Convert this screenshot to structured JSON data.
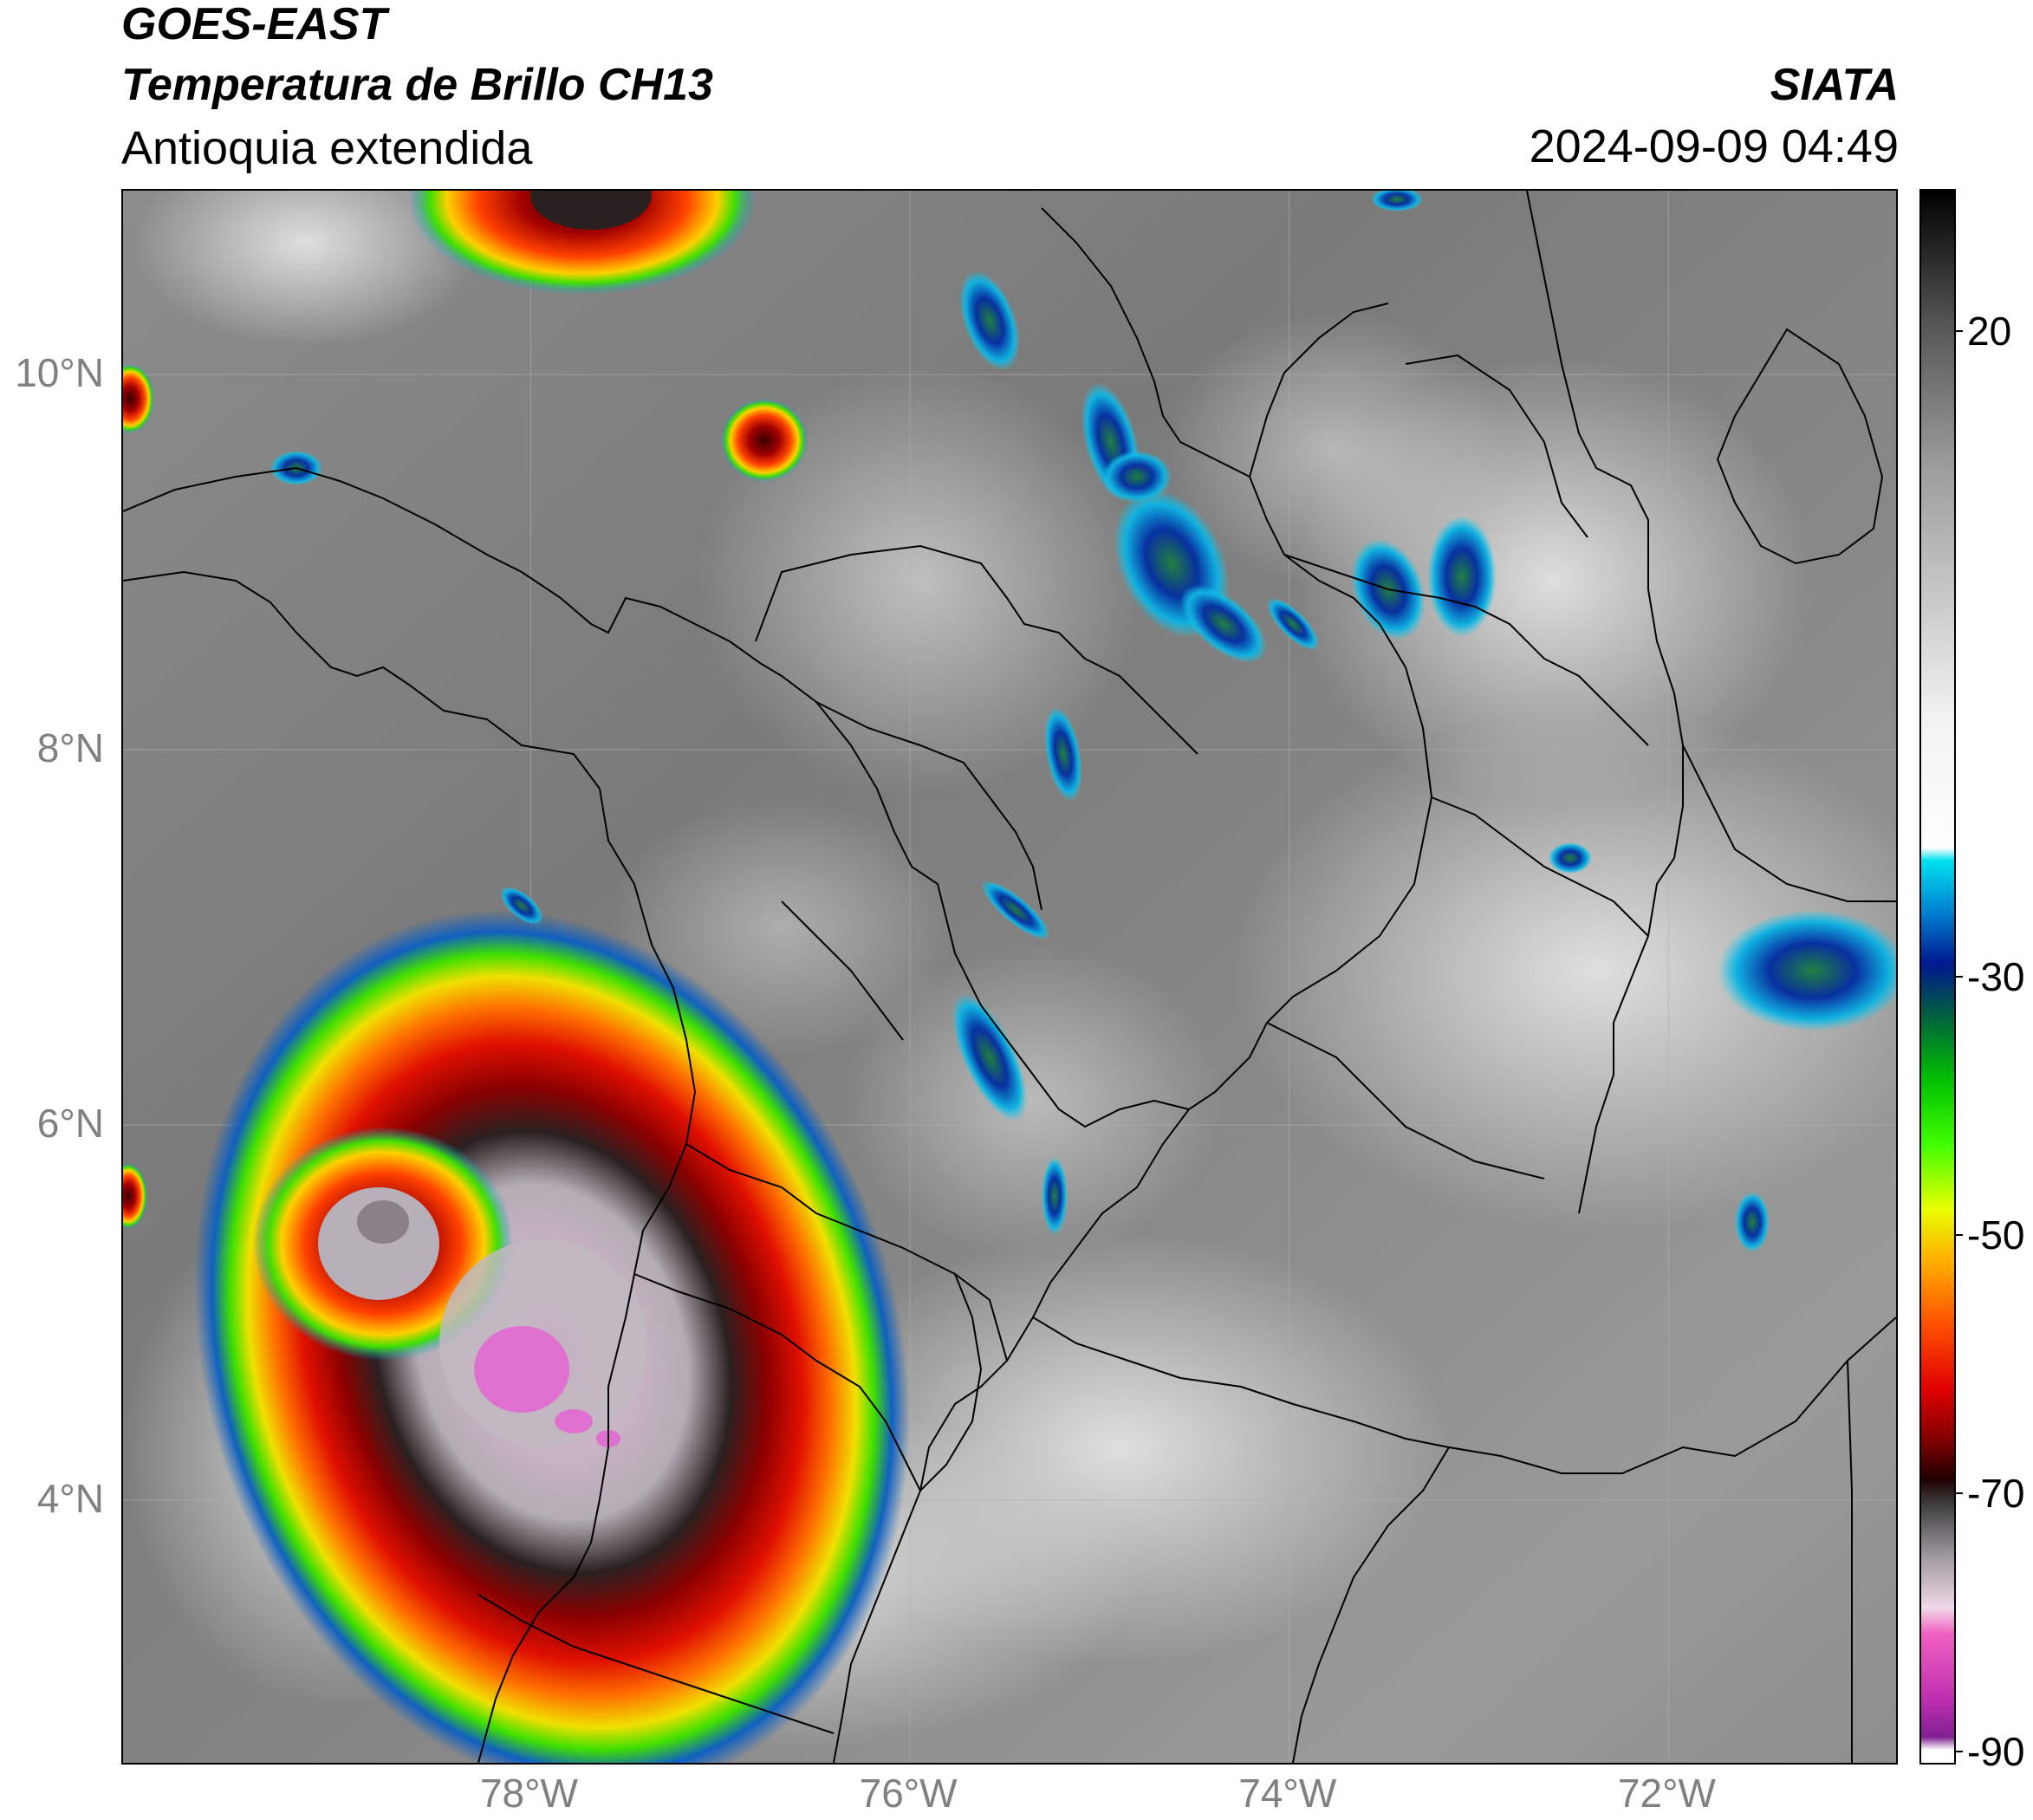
{
  "header": {
    "satellite": "GOES-EAST",
    "product": "Temperatura de Brillo CH13",
    "region": "Antioquia extendida",
    "agency": "SIATA",
    "datetime": "2024-09-09 04:49"
  },
  "map": {
    "type": "satellite-infrared-brightness-temperature",
    "lon_range": [
      -80.15,
      -70.8
    ],
    "lat_range": [
      2.6,
      10.98
    ],
    "lat_ticks": [
      {
        "value": 10,
        "label": "10°N"
      },
      {
        "value": 8,
        "label": "8°N"
      },
      {
        "value": 6,
        "label": "6°N"
      },
      {
        "value": 4,
        "label": "4°N"
      }
    ],
    "lon_ticks": [
      {
        "value": -78,
        "label": "78°W"
      },
      {
        "value": -76,
        "label": "76°W"
      },
      {
        "value": -74,
        "label": "74°W"
      },
      {
        "value": -72,
        "label": "72°W"
      }
    ],
    "gridlines": true,
    "features": [
      "coastlines",
      "country-borders",
      "department-borders"
    ],
    "convective_cells": [
      {
        "name": "large-storm-pacific",
        "lon": -78.0,
        "lat": 4.85,
        "min_temp_c": -85
      },
      {
        "name": "secondary-core",
        "lon": -78.55,
        "lat": 5.55,
        "min_temp_c": -72
      },
      {
        "name": "caribbean-north-cell",
        "lon": -77.7,
        "lat": 10.9,
        "min_temp_c": -70
      },
      {
        "name": "caribbean-small-cell",
        "lon": -76.85,
        "lat": 9.75,
        "min_temp_c": -60
      },
      {
        "name": "catatumbo-cell",
        "lon": -71.3,
        "lat": 6.8,
        "min_temp_c": -35
      },
      {
        "name": "magdalena-cells",
        "lon": -74.6,
        "lat": 9.2,
        "min_temp_c": -35
      }
    ]
  },
  "colorbar": {
    "label_values": [
      {
        "value": 20,
        "label": "20"
      },
      {
        "value": -30,
        "label": "-30"
      },
      {
        "value": -50,
        "label": "-50"
      },
      {
        "value": -70,
        "label": "-70"
      },
      {
        "value": -90,
        "label": "-90"
      }
    ],
    "range": [
      -91,
      31
    ],
    "stops": [
      {
        "value": 31,
        "color": "#000000"
      },
      {
        "value": 20,
        "color": "#5a5a5a"
      },
      {
        "value": 10,
        "color": "#9a9a9a"
      },
      {
        "value": -10,
        "color": "#f2f2f2"
      },
      {
        "value": -20,
        "color": "#ffffff"
      },
      {
        "value": -21,
        "color": "#00e0f0"
      },
      {
        "value": -25,
        "color": "#0080d0"
      },
      {
        "value": -29,
        "color": "#001890"
      },
      {
        "value": -33,
        "color": "#006040"
      },
      {
        "value": -38,
        "color": "#00c000"
      },
      {
        "value": -43,
        "color": "#40ff00"
      },
      {
        "value": -48,
        "color": "#e8ff00"
      },
      {
        "value": -52,
        "color": "#ffb000"
      },
      {
        "value": -57,
        "color": "#ff5000"
      },
      {
        "value": -62,
        "color": "#e00000"
      },
      {
        "value": -66,
        "color": "#800000"
      },
      {
        "value": -69,
        "color": "#200000"
      },
      {
        "value": -71,
        "color": "#404040"
      },
      {
        "value": -75,
        "color": "#a09aa0"
      },
      {
        "value": -79,
        "color": "#f0d8e8"
      },
      {
        "value": -81,
        "color": "#f060c0"
      },
      {
        "value": -86,
        "color": "#c030b0"
      },
      {
        "value": -89,
        "color": "#802090"
      },
      {
        "value": -90,
        "color": "#ffffff"
      }
    ]
  }
}
